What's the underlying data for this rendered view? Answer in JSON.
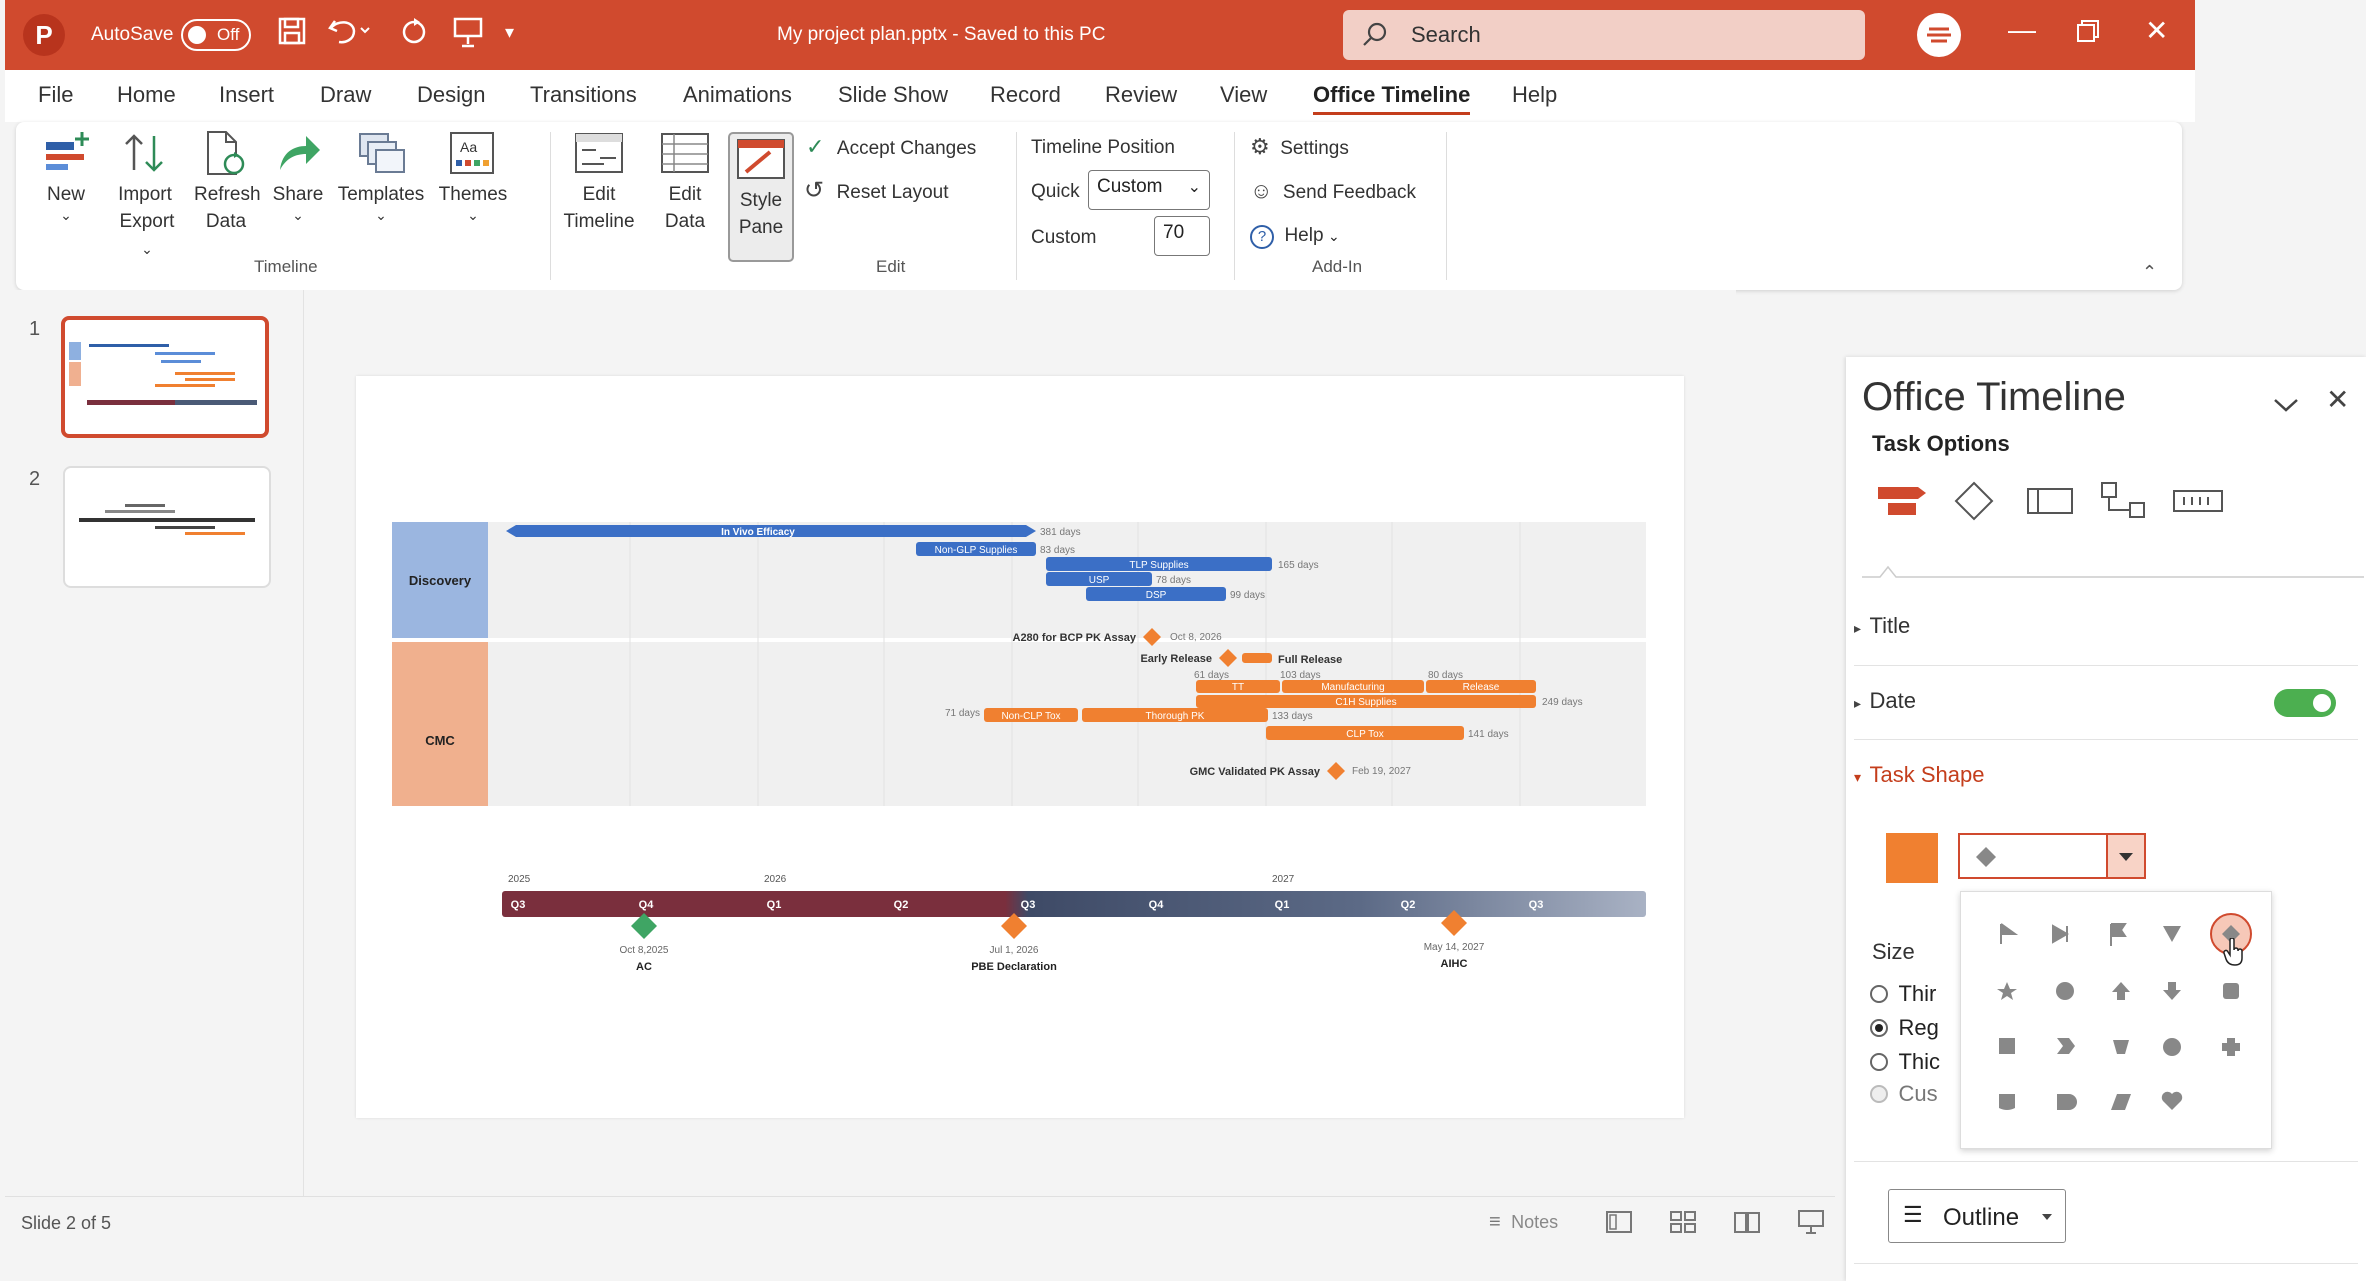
{
  "titlebar": {
    "app_letter": "P",
    "autosave_label": "AutoSave",
    "autosave_state": "Off",
    "doc_title": "My project plan.pptx - Saved to this PC",
    "search_placeholder": "Search",
    "accent": "#d04a2e"
  },
  "menu": [
    "File",
    "Home",
    "Insert",
    "Draw",
    "Design",
    "Transitions",
    "Animations",
    "Slide Show",
    "Record",
    "Review",
    "View",
    "Office Timeline",
    "Help"
  ],
  "ribbon": {
    "new": "New",
    "import1": "Import",
    "export": "Export",
    "refresh1": "Refresh",
    "refresh2": "Data",
    "share": "Share",
    "templates": "Templates",
    "themes": "Themes",
    "group_timeline": "Timeline",
    "edit_tl1": "Edit",
    "edit_tl2": "Timeline",
    "edit_data1": "Edit",
    "edit_data2": "Data",
    "style1": "Style",
    "style2": "Pane",
    "accept": "Accept Changes",
    "reset": "Reset Layout",
    "group_edit": "Edit",
    "tl_position": "Timeline Position",
    "quick": "Quick",
    "quick_value": "Custom",
    "custom": "Custom",
    "custom_value": "70",
    "settings": "Settings",
    "feedback": "Send Feedback",
    "help": "Help",
    "group_addin": "Add-In"
  },
  "thumbs": [
    "1",
    "2"
  ],
  "timeline": {
    "discovery": "Discovery",
    "cmc": "CMC",
    "tasks": [
      {
        "label": "In Vivo Efficacy",
        "duration": "381 days"
      },
      {
        "label": "Non-GLP Supplies",
        "duration": "83 days"
      },
      {
        "label": "TLP Supplies",
        "duration": "165 days"
      },
      {
        "label": "USP",
        "duration": "78 days"
      },
      {
        "label": "DSP",
        "duration": "99 days"
      },
      {
        "label": "TT",
        "duration": "61 days"
      },
      {
        "label": "Manufacturing",
        "duration": "103 days"
      },
      {
        "label": "Release",
        "duration": "80 days"
      },
      {
        "label": "C1H Supplies",
        "duration": "249 days"
      },
      {
        "label": "Non-CLP Tox",
        "duration": "71 days"
      },
      {
        "label": "Thorough PK",
        "duration": "133 days"
      },
      {
        "label": "CLP Tox",
        "duration": "141 days"
      }
    ],
    "milestones": [
      {
        "label": "A280 for BCP PK Assay",
        "date": "Oct 8, 2026"
      },
      {
        "label": "Early Release",
        "date": ""
      },
      {
        "label": "Full Release",
        "date": ""
      },
      {
        "label": "GMC Validated PK Assay",
        "date": "Feb 19, 2027"
      }
    ],
    "years": [
      "2025",
      "2026",
      "2027"
    ],
    "quarters": [
      "Q3",
      "Q4",
      "Q1",
      "Q2",
      "Q3",
      "Q4",
      "Q1",
      "Q2",
      "Q3"
    ],
    "axis_milestones": [
      {
        "date": "Oct 8,2025",
        "label": "AC"
      },
      {
        "date": "Jul 1, 2026",
        "label": "PBE Declaration"
      },
      {
        "date": "May 14, 2027",
        "label": "AIHC"
      }
    ]
  },
  "pane": {
    "title": "Office Timeline",
    "task_options": "Task Options",
    "section_title": "Title",
    "section_date": "Date",
    "section_task_shape": "Task Shape",
    "shape_color": "#f08030",
    "size_label": "Size",
    "size_options": [
      "Thin",
      "Regular",
      "Thick",
      "Custom"
    ],
    "size_options_visible": [
      "Thir",
      "Reg",
      "Thic",
      "Cus"
    ],
    "outline": "Outline"
  },
  "status": {
    "slide": "Slide 2 of 5",
    "notes": "Notes"
  }
}
